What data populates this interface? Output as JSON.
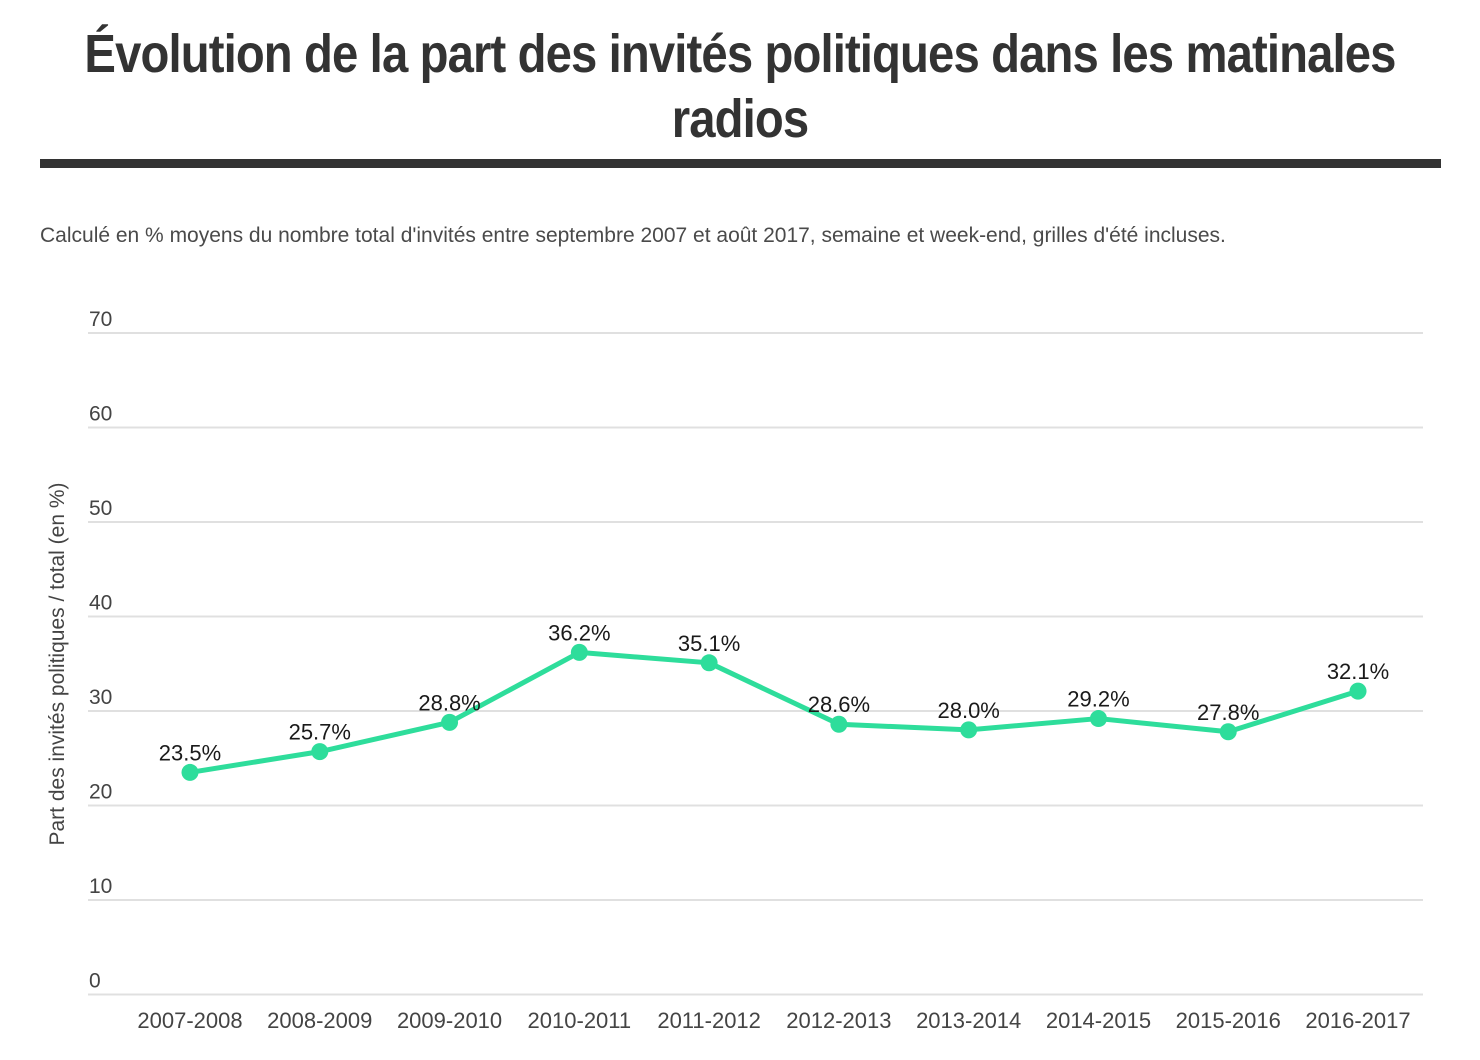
{
  "header": {
    "title": "Évolution de la part des invités politiques dans les matinales radios",
    "subtitle": "Calculé en % moyens du nombre total d'invités entre septembre 2007 et août 2017, semaine et week-end, grilles d'été incluses."
  },
  "colors": {
    "accent": "#2edd9b",
    "grid": "#e0e0e0",
    "divider": "#333333",
    "title_text": "#333333",
    "subtitle_text": "#4a4a4a",
    "tick_text": "#444444",
    "value_label_text": "#1a1a1a"
  },
  "chart_data": {
    "type": "line",
    "title": "Évolution de la part des invités politiques dans les matinales radios",
    "subtitle": "Calculé en % moyens du nombre total d'invités entre septembre 2007 et août 2017, semaine et week-end, grilles d'été incluses.",
    "categories": [
      "2007-2008",
      "2008-2009",
      "2009-2010",
      "2010-2011",
      "2011-2012",
      "2012-2013",
      "2013-2014",
      "2014-2015",
      "2015-2016",
      "2016-2017"
    ],
    "series": [
      {
        "name": "Part des invités politiques",
        "values": [
          23.5,
          25.7,
          28.8,
          36.2,
          35.1,
          28.6,
          28.0,
          29.2,
          27.8,
          32.1
        ],
        "point_labels": [
          "23.5%",
          "25.7%",
          "28.8%",
          "36.2%",
          "35.1%",
          "28.6%",
          "28.0%",
          "29.2%",
          "27.8%",
          "32.1%"
        ]
      }
    ],
    "xlabel": "",
    "ylabel": "Part des invités politiques / total (en %)",
    "ylim": [
      0,
      70
    ],
    "yticks": [
      0,
      10,
      20,
      30,
      40,
      50,
      60,
      70
    ],
    "grid": true,
    "legend": false,
    "markers": true
  }
}
